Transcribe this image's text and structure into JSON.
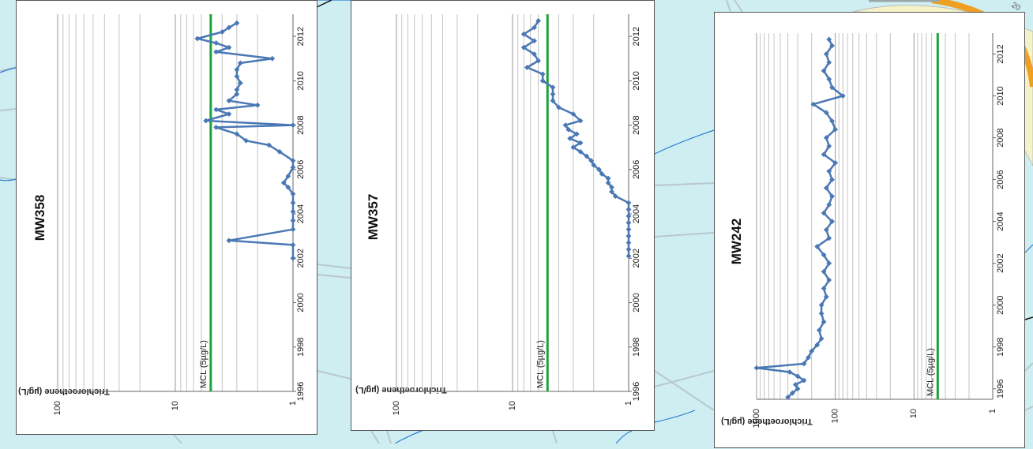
{
  "map": {
    "water": "#cfeef2",
    "road_fill": "#f6f2c8",
    "road_edge": "#f0a020",
    "parcel_line": "#b8c8cc",
    "stream": "#2a7fd4",
    "label_top_right": "20"
  },
  "chart_data": [
    {
      "type": "line",
      "title": "MW358",
      "ylabel": "Trichloroethene (µg/L)",
      "yscale": "log",
      "ylim": [
        1,
        100
      ],
      "xlim": [
        1996,
        2013
      ],
      "x_ticks": [
        "1996",
        "1998",
        "2000",
        "2002",
        "2004",
        "2006",
        "2008",
        "2010",
        "2012"
      ],
      "y_ticks": [
        "1",
        "10",
        "100"
      ],
      "orientation": "rotated-90-clockwise",
      "mcl_label": "MCL (5µg/L)",
      "mcl": 5,
      "series_color": "#4a78b4",
      "mcl_color": "#1aa33a",
      "series": [
        {
          "x": [
            2002.0,
            2002.6,
            2002.8,
            2003.3,
            2003.7,
            2004.1,
            2004.5,
            2004.9,
            2005.2,
            2005.4,
            2005.7,
            2006.1,
            2006.4,
            2006.8,
            2007.1,
            2007.3,
            2007.6,
            2007.9,
            2008.0,
            2008.2,
            2008.5,
            2008.7,
            2008.9,
            2009.1,
            2009.4,
            2009.6,
            2009.9,
            2010.2,
            2010.5,
            2010.8,
            2011.0,
            2011.3,
            2011.5,
            2011.7,
            2011.9,
            2012.2,
            2012.4,
            2012.6
          ],
          "y": [
            1,
            1,
            3.5,
            1,
            1,
            1,
            1,
            1,
            1.1,
            1.2,
            1.1,
            1,
            1,
            1.3,
            1.6,
            2.5,
            3,
            4.5,
            1,
            5.5,
            3.5,
            4.5,
            2,
            3.5,
            3,
            3,
            2.8,
            3,
            3,
            2.8,
            1.5,
            4.5,
            3.5,
            4.5,
            6.5,
            4,
            3.5,
            3
          ]
        }
      ]
    },
    {
      "type": "line",
      "title": "MW357",
      "ylabel": "Trichloroethene (µg/L)",
      "yscale": "log",
      "ylim": [
        1,
        100
      ],
      "xlim": [
        1996,
        2013
      ],
      "x_ticks": [
        "1996",
        "1998",
        "2000",
        "2002",
        "2004",
        "2006",
        "2008",
        "2010",
        "2012"
      ],
      "y_ticks": [
        "1",
        "10",
        "100"
      ],
      "orientation": "rotated-90-clockwise",
      "mcl_label": "MCL (5µg/L)",
      "mcl": 5,
      "series_color": "#4a78b4",
      "mcl_color": "#1aa33a",
      "series": [
        {
          "x": [
            2002.1,
            2002.4,
            2002.7,
            2003.0,
            2003.3,
            2003.6,
            2003.9,
            2004.2,
            2004.5,
            2004.8,
            2005.0,
            2005.2,
            2005.4,
            2005.6,
            2005.8,
            2006.0,
            2006.2,
            2006.4,
            2006.6,
            2006.8,
            2007.0,
            2007.2,
            2007.4,
            2007.6,
            2007.8,
            2008.0,
            2008.2,
            2008.5,
            2008.8,
            2009.1,
            2009.4,
            2009.7,
            2010.0,
            2010.3,
            2010.6,
            2010.9,
            2011.2,
            2011.5,
            2011.8,
            2012.1,
            2012.4,
            2012.7
          ],
          "y": [
            1,
            1,
            1,
            1,
            1,
            1,
            1,
            1,
            1,
            1.3,
            1.4,
            1.4,
            1.5,
            1.5,
            1.7,
            1.8,
            2,
            2.1,
            2.3,
            2.6,
            3,
            2.6,
            3.2,
            2.8,
            3.3,
            3.5,
            2.6,
            3,
            4,
            4.5,
            4.5,
            4.5,
            5.5,
            5.5,
            7.5,
            6,
            6.5,
            8,
            6.5,
            8,
            6.5,
            6
          ]
        }
      ]
    },
    {
      "type": "line",
      "title": "MW242",
      "ylabel": "Trichloroethene (µg/L)",
      "yscale": "log",
      "ylim": [
        1,
        1000
      ],
      "xlim": [
        1995.5,
        2013
      ],
      "x_ticks": [
        "1996",
        "1998",
        "2000",
        "2002",
        "2004",
        "2006",
        "2008",
        "2010",
        "2012"
      ],
      "y_ticks": [
        "1",
        "10",
        "100",
        "1000"
      ],
      "orientation": "rotated-90-clockwise",
      "mcl_label": "MCL (5µg/L)",
      "mcl": 5,
      "series_color": "#4a78b4",
      "mcl_color": "#1aa33a",
      "series": [
        {
          "x": [
            1995.6,
            1995.8,
            1996.0,
            1996.2,
            1996.4,
            1996.6,
            1996.8,
            1997.0,
            1997.2,
            1997.5,
            1997.8,
            1998.1,
            1998.4,
            1998.8,
            1999.2,
            1999.6,
            2000.0,
            2000.4,
            2000.8,
            2001.2,
            2001.6,
            2002.0,
            2002.4,
            2002.8,
            2003.2,
            2003.6,
            2004.0,
            2004.4,
            2004.8,
            2005.2,
            2005.6,
            2006.0,
            2006.4,
            2006.8,
            2007.2,
            2007.6,
            2008.0,
            2008.4,
            2008.8,
            2009.2,
            2009.6,
            2010.0,
            2010.4,
            2010.8,
            2011.2,
            2011.6,
            2012.0,
            2012.4,
            2012.7
          ],
          "y": [
            400,
            350,
            300,
            320,
            250,
            300,
            380,
            1000,
            250,
            220,
            200,
            170,
            150,
            160,
            140,
            150,
            150,
            130,
            140,
            120,
            140,
            120,
            140,
            170,
            120,
            130,
            110,
            140,
            120,
            110,
            130,
            110,
            120,
            100,
            140,
            120,
            130,
            100,
            110,
            130,
            190,
            80,
            110,
            120,
            140,
            120,
            130,
            110,
            120
          ]
        }
      ]
    }
  ]
}
